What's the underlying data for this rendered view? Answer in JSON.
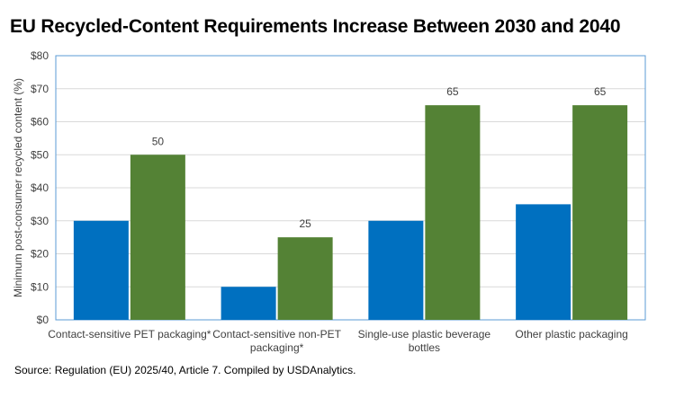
{
  "title": "EU Recycled-Content Requirements Increase Between 2030 and 2040",
  "source": "Source: Regulation (EU) 2025/40, Article 7. Compiled by USDAnalytics.",
  "colors": {
    "series_2030": "#0070C0",
    "series_2040": "#548235",
    "gridline": "#D9D9D9",
    "axis_frame": "#5B9BD5"
  },
  "chart_data": {
    "type": "bar",
    "categories": [
      [
        "Contact-sensitive PET packaging*"
      ],
      [
        "Contact-sensitive non-PET",
        "packaging*"
      ],
      [
        "Single-use plastic beverage",
        "bottles"
      ],
      [
        "Other plastic packaging"
      ]
    ],
    "series": [
      {
        "values": [
          30,
          10,
          30,
          35
        ],
        "labels": [
          "",
          "",
          "",
          ""
        ]
      },
      {
        "values": [
          50,
          25,
          65,
          65
        ],
        "labels": [
          "50",
          "25",
          "65",
          "65"
        ]
      }
    ],
    "ylabel": "Minimum post-consumer recycled content (%)",
    "yticks": [
      "$0",
      "$10",
      "$20",
      "$30",
      "$40",
      "$50",
      "$60",
      "$70",
      "$80"
    ],
    "ylim": [
      0,
      80
    ],
    "grid": true,
    "legend": "none"
  }
}
